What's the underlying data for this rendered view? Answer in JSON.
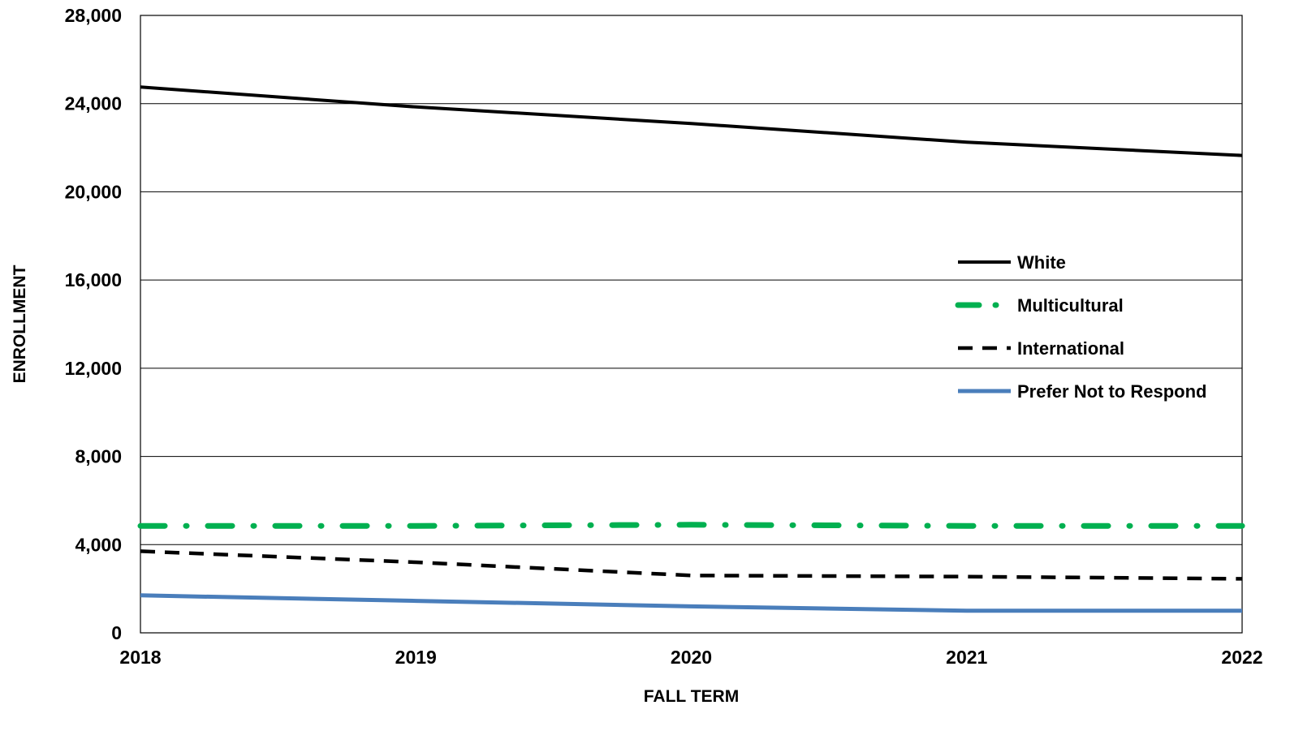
{
  "chart_data": {
    "type": "line",
    "title": "",
    "xlabel": "FALL TERM",
    "ylabel": "ENROLLMENT",
    "x": [
      2018,
      2019,
      2020,
      2021,
      2022
    ],
    "x_tick_labels": [
      "2018",
      "2019",
      "2020",
      "2021",
      "2022"
    ],
    "y_tick_labels": [
      "0",
      "4,000",
      "8,000",
      "12,000",
      "16,000",
      "20,000",
      "24,000",
      "28,000"
    ],
    "y_ticks": [
      0,
      4000,
      8000,
      12000,
      16000,
      20000,
      24000,
      28000
    ],
    "ylim": [
      0,
      28000
    ],
    "xlim": [
      2018,
      2022
    ],
    "grid": "horizontal",
    "legend_position": "right, middle of plot",
    "series": [
      {
        "name": "White",
        "values": [
          24750,
          23850,
          23100,
          22250,
          21650
        ],
        "color": "#000000",
        "style": "solid"
      },
      {
        "name": "Multicultural",
        "values": [
          4850,
          4850,
          4900,
          4850,
          4850
        ],
        "color": "#00b050",
        "style": "dash-dot"
      },
      {
        "name": "International",
        "values": [
          3700,
          3200,
          2600,
          2550,
          2450
        ],
        "color": "#000000",
        "style": "dashed"
      },
      {
        "name": "Prefer Not to Respond",
        "values": [
          1700,
          1450,
          1200,
          1000,
          1000
        ],
        "color": "#4a7ebb",
        "style": "solid"
      }
    ]
  }
}
